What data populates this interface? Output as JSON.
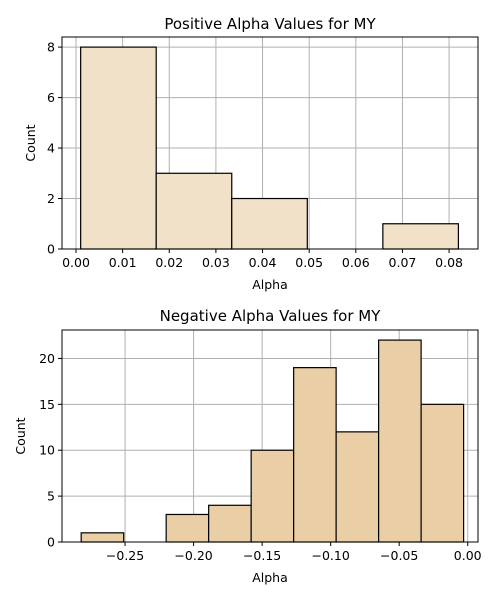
{
  "chart_data": [
    {
      "type": "bar",
      "title": "Positive Alpha Values for MY",
      "xlabel": "Alpha",
      "ylabel": "Count",
      "bin_edges": [
        0.001,
        0.0172,
        0.0334,
        0.0496,
        0.0658,
        0.082
      ],
      "values": [
        8,
        3,
        2,
        0,
        1
      ],
      "xlim": [
        -0.003,
        0.0862
      ],
      "ylim": [
        0,
        8.4
      ],
      "xticks": [
        0.0,
        0.01,
        0.02,
        0.03,
        0.04,
        0.05,
        0.06,
        0.07,
        0.08
      ],
      "xtick_labels": [
        "0.00",
        "0.01",
        "0.02",
        "0.03",
        "0.04",
        "0.05",
        "0.06",
        "0.07",
        "0.08"
      ],
      "yticks": [
        0,
        2,
        4,
        6,
        8
      ],
      "ytick_labels": [
        "0",
        "2",
        "4",
        "6",
        "8"
      ],
      "grid": true,
      "bar_color": "#f1e1c8",
      "edge_color": "#000000"
    },
    {
      "type": "bar",
      "title": "Negative Alpha Values for MY",
      "xlabel": "Alpha",
      "ylabel": "Count",
      "bin_edges": [
        -0.282,
        -0.251,
        -0.22,
        -0.189,
        -0.158,
        -0.127,
        -0.096,
        -0.065,
        -0.034,
        -0.003
      ],
      "values": [
        1,
        0,
        3,
        4,
        10,
        19,
        12,
        22,
        15
      ],
      "xlim": [
        -0.296,
        0.0075
      ],
      "ylim": [
        0,
        23.1
      ],
      "xticks": [
        -0.25,
        -0.2,
        -0.15,
        -0.1,
        -0.05,
        0.0
      ],
      "xtick_labels": [
        "−0.25",
        "−0.20",
        "−0.15",
        "−0.10",
        "−0.05",
        "0.00"
      ],
      "yticks": [
        0,
        5,
        10,
        15,
        20
      ],
      "ytick_labels": [
        "0",
        "5",
        "10",
        "15",
        "20"
      ],
      "grid": true,
      "bar_color": "#eacfa6",
      "edge_color": "#000000"
    }
  ]
}
